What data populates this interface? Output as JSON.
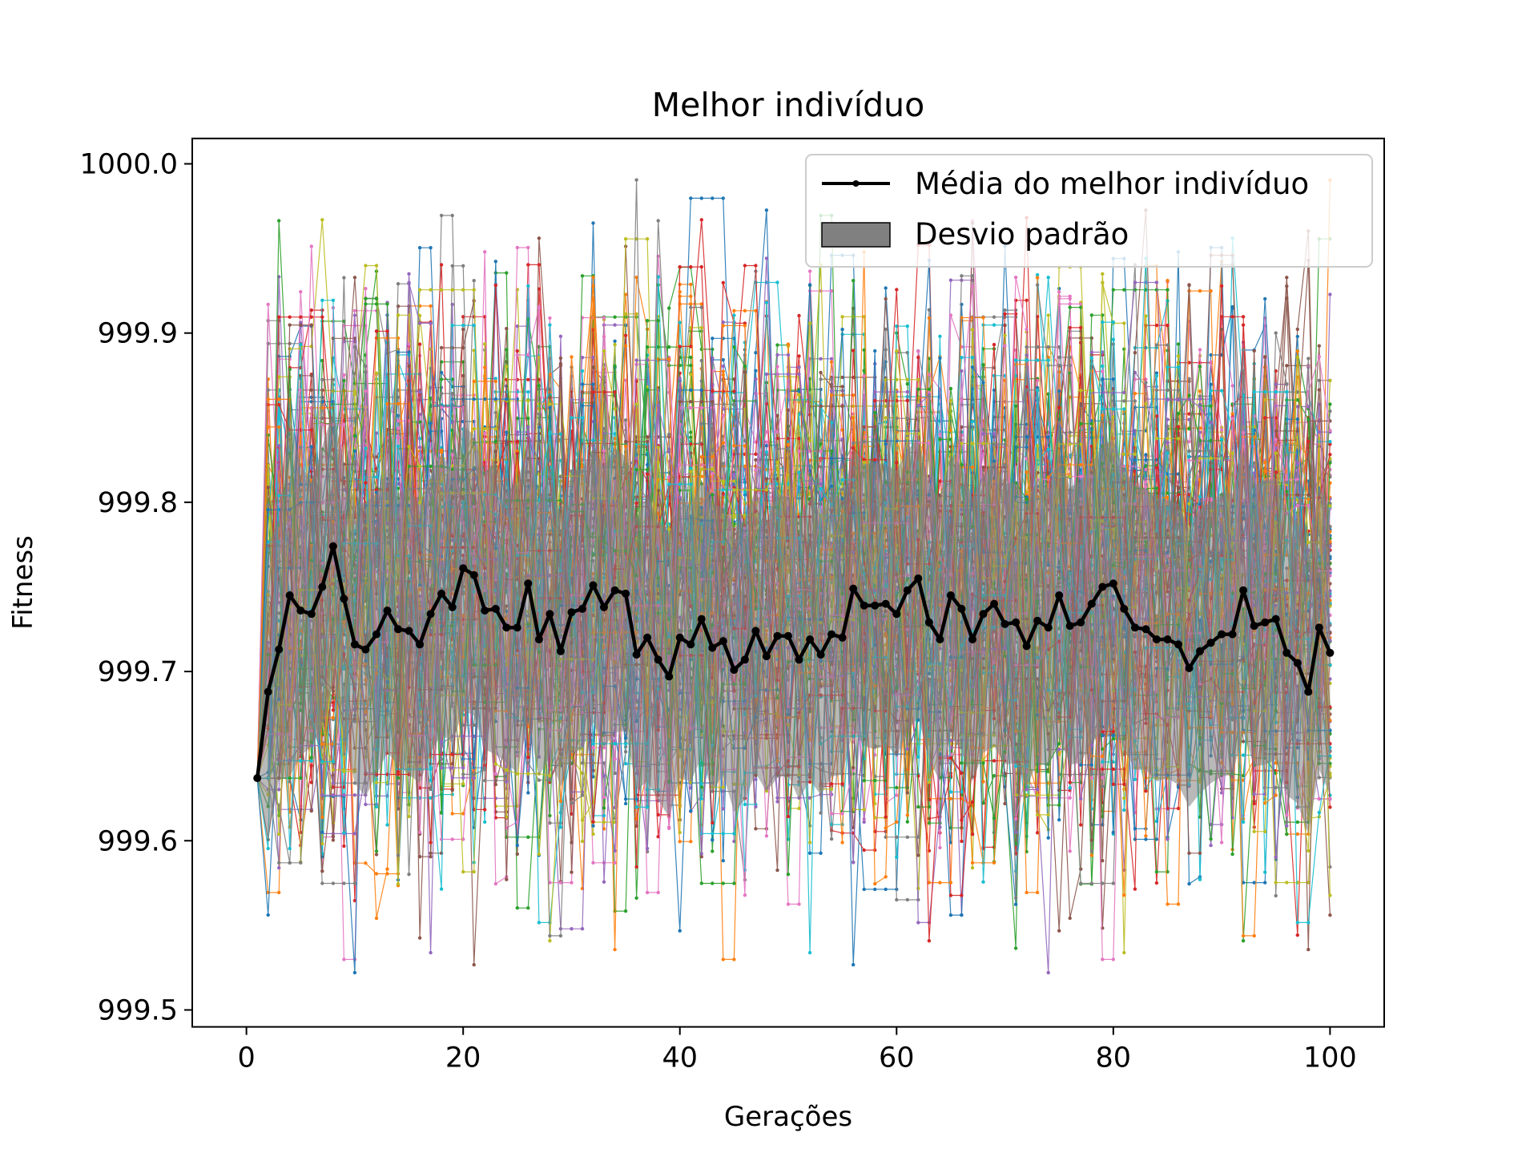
{
  "chart_data": {
    "type": "line",
    "title": "Melhor indivíduo",
    "xlabel": "Gerações",
    "ylabel": "Fitness",
    "xlim": [
      -5,
      105
    ],
    "ylim": [
      999.49,
      1000.015
    ],
    "xticks": [
      0,
      20,
      40,
      60,
      80,
      100
    ],
    "xtick_labels": [
      "0",
      "20",
      "40",
      "60",
      "80",
      "100"
    ],
    "yticks": [
      999.5,
      999.6,
      999.7,
      999.8,
      999.9,
      1000.0
    ],
    "ytick_labels": [
      "999.5",
      "999.6",
      "999.7",
      "999.8",
      "999.9",
      "1000.0"
    ],
    "grid": false,
    "legend_position": "upper right",
    "legend": [
      {
        "label": "Média do melhor indivíduo",
        "kind": "line-marker",
        "color": "#000000"
      },
      {
        "label": "Desvio padrão",
        "kind": "patch",
        "color": "#808080"
      }
    ],
    "x": [
      1,
      2,
      3,
      4,
      5,
      6,
      7,
      8,
      9,
      10,
      11,
      12,
      13,
      14,
      15,
      16,
      17,
      18,
      19,
      20,
      21,
      22,
      23,
      24,
      25,
      26,
      27,
      28,
      29,
      30,
      31,
      32,
      33,
      34,
      35,
      36,
      37,
      38,
      39,
      40,
      41,
      42,
      43,
      44,
      45,
      46,
      47,
      48,
      49,
      50,
      51,
      52,
      53,
      54,
      55,
      56,
      57,
      58,
      59,
      60,
      61,
      62,
      63,
      64,
      65,
      66,
      67,
      68,
      69,
      70,
      71,
      72,
      73,
      74,
      75,
      76,
      77,
      78,
      79,
      80,
      81,
      82,
      83,
      84,
      85,
      86,
      87,
      88,
      89,
      90,
      91,
      92,
      93,
      94,
      95,
      96,
      97,
      98,
      99,
      100
    ],
    "series": [
      {
        "name": "Média do melhor indivíduo",
        "color": "#000000",
        "values": [
          999.637,
          999.688,
          999.713,
          999.745,
          999.736,
          999.734,
          999.75,
          999.774,
          999.743,
          999.716,
          999.713,
          999.722,
          999.736,
          999.725,
          999.724,
          999.716,
          999.734,
          999.746,
          999.738,
          999.761,
          999.757,
          999.736,
          999.737,
          999.726,
          999.726,
          999.752,
          999.719,
          999.734,
          999.712,
          999.735,
          999.737,
          999.751,
          999.738,
          999.748,
          999.746,
          999.71,
          999.72,
          999.707,
          999.697,
          999.72,
          999.716,
          999.731,
          999.714,
          999.718,
          999.701,
          999.707,
          999.724,
          999.709,
          999.721,
          999.721,
          999.707,
          999.719,
          999.71,
          999.722,
          999.72,
          999.749,
          999.739,
          999.739,
          999.74,
          999.734,
          999.748,
          999.755,
          999.729,
          999.719,
          999.745,
          999.737,
          999.719,
          999.734,
          999.74,
          999.728,
          999.729,
          999.715,
          999.73,
          999.726,
          999.745,
          999.727,
          999.729,
          999.74,
          999.75,
          999.752,
          999.737,
          999.726,
          999.725,
          999.719,
          999.719,
          999.716,
          999.702,
          999.712,
          999.717,
          999.722,
          999.722,
          999.748,
          999.727,
          999.729,
          999.731,
          999.711,
          999.705,
          999.688,
          999.726,
          999.711
        ]
      }
    ],
    "std_band": {
      "name": "Desvio padrão",
      "color": "#808080",
      "upper": [
        999.637,
        999.775,
        999.79,
        999.852,
        999.822,
        999.812,
        999.833,
        999.854,
        999.824,
        999.798,
        999.8,
        999.805,
        999.82,
        999.805,
        999.809,
        999.798,
        999.816,
        999.829,
        999.818,
        999.845,
        999.84,
        999.818,
        999.823,
        999.806,
        999.812,
        999.834,
        999.8,
        999.818,
        999.792,
        999.818,
        999.82,
        999.832,
        999.821,
        999.832,
        999.827,
        999.79,
        999.805,
        999.79,
        999.78,
        999.803,
        999.797,
        999.813,
        999.799,
        999.797,
        999.785,
        999.79,
        999.808,
        999.789,
        999.805,
        999.803,
        999.79,
        999.802,
        999.793,
        999.806,
        999.801,
        999.832,
        999.822,
        999.824,
        999.822,
        999.819,
        999.831,
        999.837,
        999.81,
        999.803,
        999.828,
        999.821,
        999.803,
        999.816,
        999.824,
        999.811,
        999.812,
        999.798,
        999.814,
        999.808,
        999.829,
        999.809,
        999.812,
        999.822,
        999.835,
        999.836,
        999.82,
        999.81,
        999.808,
        999.803,
        999.801,
        999.799,
        999.784,
        999.796,
        999.8,
        999.806,
        999.805,
        999.832,
        999.81,
        999.813,
        999.814,
        999.795,
        999.788,
        999.772,
        999.81,
        999.795
      ],
      "lower": [
        999.637,
        999.601,
        999.636,
        999.638,
        999.65,
        999.656,
        999.667,
        999.694,
        999.662,
        999.634,
        999.626,
        999.639,
        999.652,
        999.645,
        999.639,
        999.634,
        999.652,
        999.663,
        999.658,
        999.677,
        999.674,
        999.654,
        999.651,
        999.646,
        999.64,
        999.67,
        999.638,
        999.65,
        999.632,
        999.652,
        999.654,
        999.67,
        999.655,
        999.664,
        999.665,
        999.63,
        999.635,
        999.624,
        999.614,
        999.637,
        999.635,
        999.649,
        999.629,
        999.639,
        999.617,
        999.624,
        999.64,
        999.629,
        999.637,
        999.639,
        999.624,
        999.636,
        999.627,
        999.638,
        999.639,
        999.666,
        999.656,
        999.654,
        999.658,
        999.649,
        999.665,
        999.673,
        999.648,
        999.635,
        999.662,
        999.653,
        999.635,
        999.652,
        999.656,
        999.645,
        999.646,
        999.632,
        999.646,
        999.644,
        999.661,
        999.645,
        999.646,
        999.658,
        999.665,
        999.668,
        999.654,
        999.642,
        999.642,
        999.635,
        999.637,
        999.633,
        999.62,
        999.628,
        999.634,
        999.638,
        999.639,
        999.664,
        999.644,
        999.645,
        999.648,
        999.627,
        999.622,
        999.604,
        999.642,
        999.627
      ]
    },
    "individual_runs": {
      "count": 100,
      "colors": [
        "#1f77b4",
        "#ff7f0e",
        "#2ca02c",
        "#d62728",
        "#9467bd",
        "#8c564b",
        "#e377c2",
        "#7f7f7f",
        "#bcbd22",
        "#17becf"
      ],
      "value_range": [
        999.51,
        999.999
      ],
      "start_value": 999.637
    }
  }
}
